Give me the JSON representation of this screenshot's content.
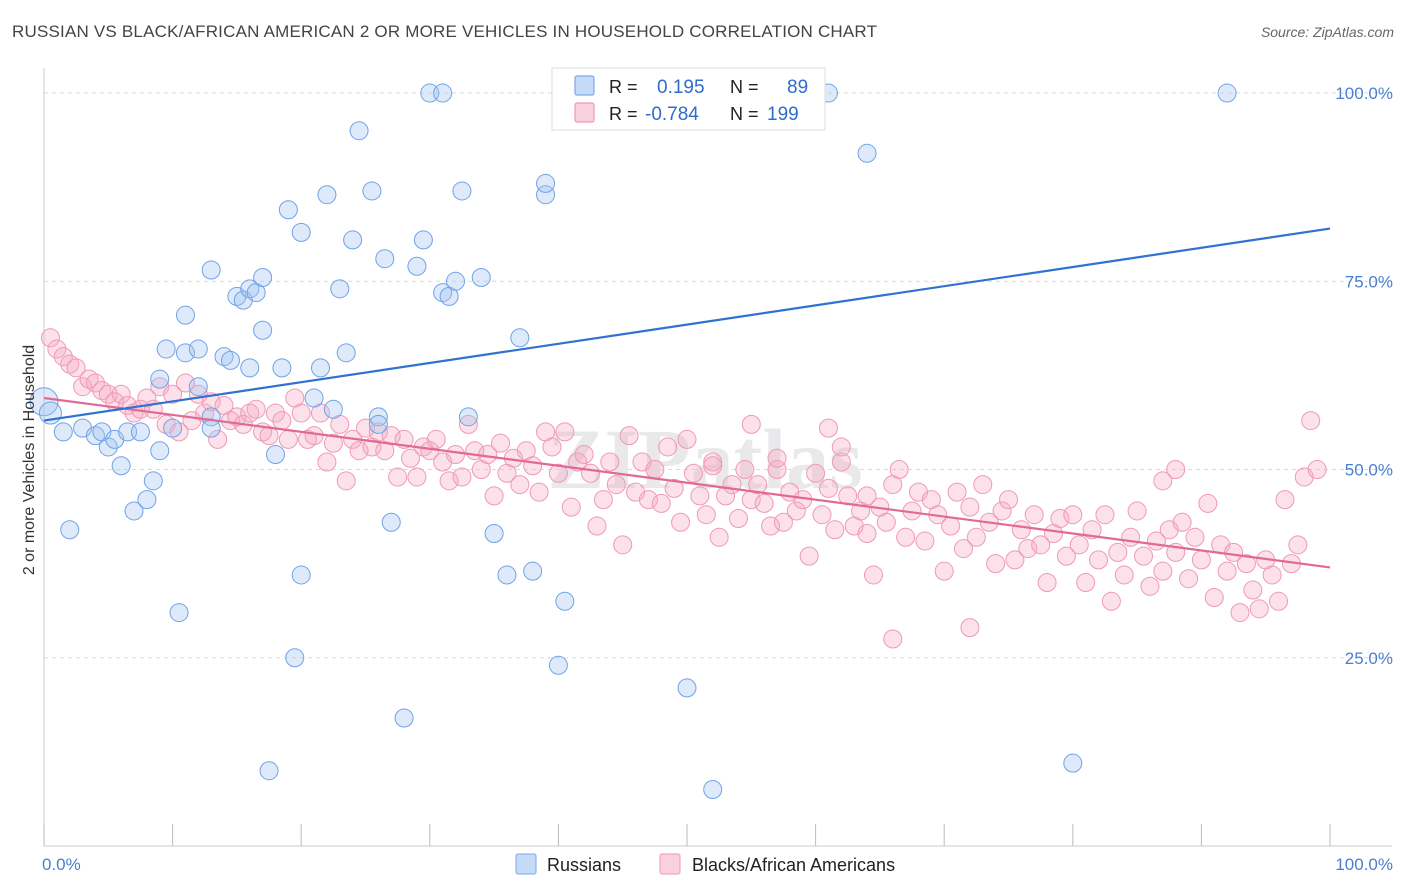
{
  "title": "RUSSIAN VS BLACK/AFRICAN AMERICAN 2 OR MORE VEHICLES IN HOUSEHOLD CORRELATION CHART",
  "source": "Source: ZipAtlas.com",
  "watermark": "ZIPatlas",
  "legend": {
    "rows": [
      {
        "r_label": "R =",
        "r_value": "0.195",
        "n_label": "N =",
        "n_value": "89",
        "color": "#a9c8f0"
      },
      {
        "r_label": "R =",
        "r_value": "-0.784",
        "n_label": "N =",
        "n_value": "199",
        "color": "#f5b8cb"
      }
    ]
  },
  "bottom_legend": [
    "Russians",
    "Blacks/African Americans"
  ],
  "chart_data": {
    "type": "scatter",
    "title": "RUSSIAN VS BLACK/AFRICAN AMERICAN 2 OR MORE VEHICLES IN HOUSEHOLD CORRELATION CHART",
    "xlabel": "",
    "ylabel": "2 or more Vehicles in Household",
    "xlim": [
      0,
      100
    ],
    "ylim": [
      0,
      102
    ],
    "x_tick_labels": [
      "0.0%",
      "100.0%"
    ],
    "y_tick_labels": [
      "25.0%",
      "50.0%",
      "75.0%",
      "100.0%"
    ],
    "y_ticks": [
      25,
      50,
      75,
      100
    ],
    "grid": "horizontal dashed",
    "colors": {
      "russians": "#6fa3e8",
      "black": "#ee8fae",
      "russians_line": "#2f72d0",
      "black_line": "#e06a95"
    },
    "series": [
      {
        "name": "Russians",
        "trend": [
          [
            0,
            56.5
          ],
          [
            100,
            82
          ]
        ],
        "points": [
          [
            0,
            59
          ],
          [
            0.5,
            57.5
          ],
          [
            1.5,
            55
          ],
          [
            2,
            42
          ],
          [
            3,
            55.5
          ],
          [
            4,
            54.5
          ],
          [
            4.5,
            55
          ],
          [
            5,
            53
          ],
          [
            5.5,
            54
          ],
          [
            6,
            50.5
          ],
          [
            6.5,
            55
          ],
          [
            7,
            44.5
          ],
          [
            7.5,
            55
          ],
          [
            8,
            46
          ],
          [
            8.5,
            48.5
          ],
          [
            9,
            52.5
          ],
          [
            9.5,
            66
          ],
          [
            9,
            62
          ],
          [
            10,
            55.5
          ],
          [
            10.5,
            31
          ],
          [
            11,
            70.5
          ],
          [
            11,
            65.5
          ],
          [
            12,
            66
          ],
          [
            12,
            61
          ],
          [
            13,
            57
          ],
          [
            13,
            76.5
          ],
          [
            13,
            55.5
          ],
          [
            14,
            65
          ],
          [
            14.5,
            64.5
          ],
          [
            15,
            73
          ],
          [
            15.5,
            72.5
          ],
          [
            16,
            74
          ],
          [
            16,
            63.5
          ],
          [
            16.5,
            73.5
          ],
          [
            17,
            75.5
          ],
          [
            17,
            68.5
          ],
          [
            17.5,
            10
          ],
          [
            18,
            52
          ],
          [
            18.5,
            63.5
          ],
          [
            19,
            84.5
          ],
          [
            19.5,
            25
          ],
          [
            20,
            81.5
          ],
          [
            20,
            36
          ],
          [
            21,
            59.5
          ],
          [
            21.5,
            63.5
          ],
          [
            22,
            86.5
          ],
          [
            22.5,
            58
          ],
          [
            23,
            74
          ],
          [
            23.5,
            65.5
          ],
          [
            24,
            80.5
          ],
          [
            24.5,
            95
          ],
          [
            25.5,
            87
          ],
          [
            26,
            57
          ],
          [
            26,
            56
          ],
          [
            26.5,
            78
          ],
          [
            27,
            43
          ],
          [
            28,
            17
          ],
          [
            29,
            77
          ],
          [
            29.5,
            80.5
          ],
          [
            30,
            100
          ],
          [
            31,
            73.5
          ],
          [
            31,
            100
          ],
          [
            31.5,
            73
          ],
          [
            32,
            75
          ],
          [
            32.5,
            87
          ],
          [
            33,
            57
          ],
          [
            34,
            75.5
          ],
          [
            35,
            41.5
          ],
          [
            36,
            36
          ],
          [
            37,
            67.5
          ],
          [
            38,
            36.5
          ],
          [
            39,
            86.5
          ],
          [
            39,
            88
          ],
          [
            40,
            24
          ],
          [
            40.5,
            32.5
          ],
          [
            47,
            100
          ],
          [
            50,
            21
          ],
          [
            52,
            7.5
          ],
          [
            61,
            100
          ],
          [
            64,
            92
          ],
          [
            80,
            11
          ],
          [
            92,
            100
          ]
        ]
      },
      {
        "name": "Blacks/African Americans",
        "trend": [
          [
            0,
            59.5
          ],
          [
            100,
            37
          ]
        ],
        "points": [
          [
            0.5,
            67.5
          ],
          [
            1,
            66
          ],
          [
            1.5,
            65
          ],
          [
            2,
            64
          ],
          [
            2.5,
            63.5
          ],
          [
            3,
            61
          ],
          [
            3.5,
            62
          ],
          [
            4,
            61.5
          ],
          [
            4.5,
            60.5
          ],
          [
            5,
            60
          ],
          [
            5.5,
            59
          ],
          [
            6,
            60
          ],
          [
            6.5,
            58.5
          ],
          [
            7,
            57.5
          ],
          [
            7.5,
            58
          ],
          [
            8,
            59.5
          ],
          [
            8.5,
            58
          ],
          [
            9,
            61
          ],
          [
            9.5,
            56
          ],
          [
            10,
            60
          ],
          [
            10.5,
            55
          ],
          [
            11,
            61.5
          ],
          [
            11.5,
            56.5
          ],
          [
            12,
            60
          ],
          [
            12.5,
            57.5
          ],
          [
            13,
            59
          ],
          [
            13.5,
            54
          ],
          [
            14,
            58.5
          ],
          [
            14.5,
            56.5
          ],
          [
            15,
            57
          ],
          [
            15.5,
            56
          ],
          [
            16,
            57.5
          ],
          [
            16.5,
            58
          ],
          [
            17,
            55
          ],
          [
            17.5,
            54.5
          ],
          [
            18,
            57.5
          ],
          [
            18.5,
            56.5
          ],
          [
            19,
            54
          ],
          [
            19.5,
            59.5
          ],
          [
            20,
            57.5
          ],
          [
            20.5,
            54
          ],
          [
            21,
            54.5
          ],
          [
            21.5,
            57.5
          ],
          [
            22,
            51
          ],
          [
            22.5,
            53.5
          ],
          [
            23,
            56
          ],
          [
            23.5,
            48.5
          ],
          [
            24,
            54
          ],
          [
            24.5,
            52.5
          ],
          [
            25,
            55.5
          ],
          [
            25.5,
            53
          ],
          [
            26,
            55
          ],
          [
            26.5,
            52.5
          ],
          [
            27,
            54.5
          ],
          [
            27.5,
            49
          ],
          [
            28,
            54
          ],
          [
            28.5,
            51.5
          ],
          [
            29,
            49
          ],
          [
            29.5,
            53
          ],
          [
            30,
            52.5
          ],
          [
            30.5,
            54
          ],
          [
            31,
            51
          ],
          [
            31.5,
            48.5
          ],
          [
            32,
            52
          ],
          [
            32.5,
            49
          ],
          [
            33,
            56
          ],
          [
            33.5,
            52.5
          ],
          [
            34,
            50
          ],
          [
            34.5,
            52
          ],
          [
            35,
            46.5
          ],
          [
            35.5,
            53.5
          ],
          [
            36,
            49.5
          ],
          [
            36.5,
            51.5
          ],
          [
            37,
            48
          ],
          [
            37.5,
            52.5
          ],
          [
            38,
            50.5
          ],
          [
            38.5,
            47
          ],
          [
            39,
            55
          ],
          [
            39.5,
            53
          ],
          [
            40,
            49.5
          ],
          [
            40.5,
            55
          ],
          [
            41,
            45
          ],
          [
            41.5,
            51
          ],
          [
            42,
            52
          ],
          [
            42.5,
            49.5
          ],
          [
            43,
            42.5
          ],
          [
            43.5,
            46
          ],
          [
            44,
            51
          ],
          [
            44.5,
            48
          ],
          [
            45,
            40
          ],
          [
            45.5,
            54.5
          ],
          [
            46,
            47
          ],
          [
            46.5,
            51
          ],
          [
            47,
            46
          ],
          [
            47.5,
            50
          ],
          [
            48,
            45.5
          ],
          [
            48.5,
            53
          ],
          [
            49,
            47.5
          ],
          [
            49.5,
            43
          ],
          [
            50,
            54
          ],
          [
            50.5,
            49.5
          ],
          [
            51,
            46.5
          ],
          [
            51.5,
            44
          ],
          [
            52,
            51
          ],
          [
            52.5,
            41
          ],
          [
            53,
            46.5
          ],
          [
            53.5,
            48
          ],
          [
            54,
            43.5
          ],
          [
            54.5,
            50
          ],
          [
            55,
            46
          ],
          [
            55.5,
            48
          ],
          [
            56,
            45.5
          ],
          [
            56.5,
            42.5
          ],
          [
            57,
            50
          ],
          [
            57.5,
            43
          ],
          [
            58,
            47
          ],
          [
            58.5,
            44.5
          ],
          [
            59,
            46
          ],
          [
            59.5,
            38.5
          ],
          [
            60,
            49.5
          ],
          [
            60.5,
            44
          ],
          [
            61,
            47.5
          ],
          [
            61.5,
            42
          ],
          [
            62,
            51
          ],
          [
            62.5,
            46.5
          ],
          [
            63,
            42.5
          ],
          [
            63.5,
            44.5
          ],
          [
            64,
            46.5
          ],
          [
            64.5,
            36
          ],
          [
            65,
            45
          ],
          [
            65.5,
            43
          ],
          [
            66,
            48
          ],
          [
            66.5,
            50
          ],
          [
            67,
            41
          ],
          [
            67.5,
            44.5
          ],
          [
            68,
            47
          ],
          [
            68.5,
            40.5
          ],
          [
            69,
            46
          ],
          [
            69.5,
            44
          ],
          [
            70,
            36.5
          ],
          [
            70.5,
            42.5
          ],
          [
            71,
            47
          ],
          [
            71.5,
            39.5
          ],
          [
            72,
            45
          ],
          [
            72.5,
            41
          ],
          [
            73,
            48
          ],
          [
            73.5,
            43
          ],
          [
            74,
            37.5
          ],
          [
            74.5,
            44.5
          ],
          [
            75,
            46
          ],
          [
            75.5,
            38
          ],
          [
            76,
            42
          ],
          [
            76.5,
            39.5
          ],
          [
            77,
            44
          ],
          [
            77.5,
            40
          ],
          [
            78,
            35
          ],
          [
            78.5,
            41.5
          ],
          [
            79,
            43.5
          ],
          [
            79.5,
            38.5
          ],
          [
            80,
            44
          ],
          [
            80.5,
            40
          ],
          [
            81,
            35
          ],
          [
            81.5,
            42
          ],
          [
            82,
            38
          ],
          [
            82.5,
            44
          ],
          [
            83,
            32.5
          ],
          [
            83.5,
            39
          ],
          [
            84,
            36
          ],
          [
            84.5,
            41
          ],
          [
            85,
            44.5
          ],
          [
            85.5,
            38.5
          ],
          [
            86,
            34.5
          ],
          [
            86.5,
            40.5
          ],
          [
            87,
            36.5
          ],
          [
            87.5,
            42
          ],
          [
            88,
            39
          ],
          [
            88.5,
            43
          ],
          [
            89,
            35.5
          ],
          [
            89.5,
            41
          ],
          [
            90,
            38
          ],
          [
            90.5,
            45.5
          ],
          [
            91,
            33
          ],
          [
            91.5,
            40
          ],
          [
            92,
            36.5
          ],
          [
            92.5,
            39
          ],
          [
            93,
            31
          ],
          [
            93.5,
            37.5
          ],
          [
            94,
            34
          ],
          [
            94.5,
            31.5
          ],
          [
            95,
            38
          ],
          [
            95.5,
            36
          ],
          [
            96,
            32.5
          ],
          [
            96.5,
            46
          ],
          [
            97,
            37.5
          ],
          [
            97.5,
            40
          ],
          [
            98,
            49
          ],
          [
            98.5,
            56.5
          ],
          [
            99,
            50
          ],
          [
            72,
            29
          ],
          [
            66,
            27.5
          ],
          [
            87,
            48.5
          ],
          [
            88,
            50
          ],
          [
            52,
            50.5
          ],
          [
            57,
            51.5
          ],
          [
            62,
            53
          ],
          [
            64,
            41.5
          ],
          [
            61,
            55.5
          ],
          [
            55,
            56
          ]
        ]
      }
    ]
  }
}
